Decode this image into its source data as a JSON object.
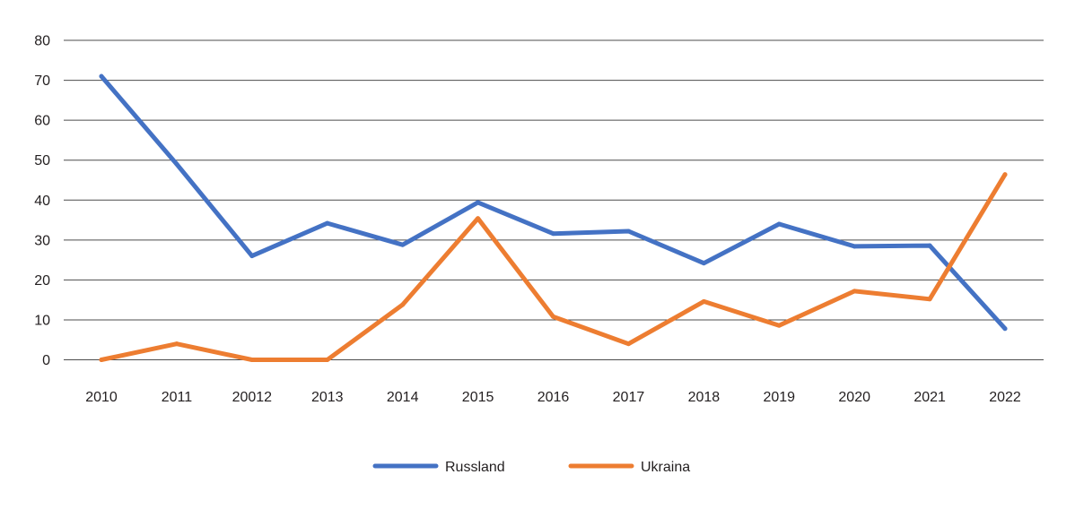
{
  "chart_data": {
    "type": "line",
    "title": "",
    "xlabel": "",
    "ylabel": "",
    "categories": [
      "2010",
      "2011",
      "20012",
      "2013",
      "2014",
      "2015",
      "2016",
      "2017",
      "2018",
      "2019",
      "2020",
      "2021",
      "2022"
    ],
    "ylim": [
      0,
      80
    ],
    "yticks": [
      "0",
      "10",
      "20",
      "30",
      "40",
      "50",
      "60",
      "70",
      "80"
    ],
    "grid": true,
    "legend_position": "bottom",
    "series": [
      {
        "name": "Russland",
        "color": "#4472c4",
        "values": [
          71,
          49,
          26,
          34.2,
          28.8,
          39.4,
          31.6,
          32.2,
          24.2,
          34,
          28.4,
          28.6,
          7.8
        ]
      },
      {
        "name": "Ukraina",
        "color": "#ed7d31",
        "values": [
          0,
          4,
          0,
          0,
          13.8,
          35.4,
          10.8,
          4,
          14.6,
          8.6,
          17.2,
          15.2,
          46.4
        ]
      }
    ]
  }
}
